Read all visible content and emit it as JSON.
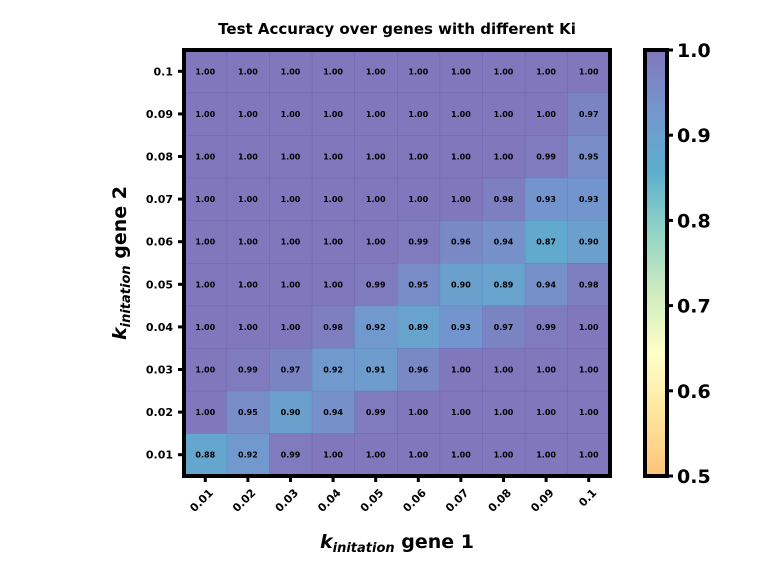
{
  "chart_data": {
    "type": "heatmap",
    "title": "Test Accuracy over genes with different Ki",
    "xlabel": {
      "symbol": "k",
      "subscript": "initation",
      "suffix": " gene 1"
    },
    "ylabel": {
      "symbol": "k",
      "subscript": "initation",
      "suffix": " gene 2"
    },
    "x_categories": [
      "0.01",
      "0.02",
      "0.03",
      "0.04",
      "0.05",
      "0.06",
      "0.07",
      "0.08",
      "0.09",
      "0.1"
    ],
    "y_categories": [
      "0.1",
      "0.09",
      "0.08",
      "0.07",
      "0.06",
      "0.05",
      "0.04",
      "0.03",
      "0.02",
      "0.01"
    ],
    "values": [
      [
        1.0,
        1.0,
        1.0,
        1.0,
        1.0,
        1.0,
        1.0,
        1.0,
        1.0,
        1.0
      ],
      [
        1.0,
        1.0,
        1.0,
        1.0,
        1.0,
        1.0,
        1.0,
        1.0,
        1.0,
        0.97
      ],
      [
        1.0,
        1.0,
        1.0,
        1.0,
        1.0,
        1.0,
        1.0,
        1.0,
        0.99,
        0.95
      ],
      [
        1.0,
        1.0,
        1.0,
        1.0,
        1.0,
        1.0,
        1.0,
        0.98,
        0.93,
        0.93
      ],
      [
        1.0,
        1.0,
        1.0,
        1.0,
        1.0,
        0.99,
        0.96,
        0.94,
        0.87,
        0.9
      ],
      [
        1.0,
        1.0,
        1.0,
        1.0,
        0.99,
        0.95,
        0.9,
        0.89,
        0.94,
        0.98
      ],
      [
        1.0,
        1.0,
        1.0,
        0.98,
        0.92,
        0.89,
        0.93,
        0.97,
        0.99,
        1.0
      ],
      [
        1.0,
        0.99,
        0.97,
        0.92,
        0.91,
        0.96,
        1.0,
        1.0,
        1.0,
        1.0
      ],
      [
        1.0,
        0.95,
        0.9,
        0.94,
        0.99,
        1.0,
        1.0,
        1.0,
        1.0,
        1.0
      ],
      [
        0.88,
        0.92,
        0.99,
        1.0,
        1.0,
        1.0,
        1.0,
        1.0,
        1.0,
        1.0
      ]
    ],
    "value_format_decimals": 2,
    "colorbar": {
      "range": [
        0.5,
        1.0
      ],
      "ticks": [
        "0.5",
        "0.6",
        "0.7",
        "0.8",
        "0.9",
        "1.0"
      ],
      "colormap": [
        "#fdb863",
        "#fee08b",
        "#ffffbf",
        "#c7e9b4",
        "#7fcdbb",
        "#41a0c4",
        "#5b84c4",
        "#6b5fb0"
      ]
    },
    "cell_opacity": 0.85,
    "grid": false
  }
}
